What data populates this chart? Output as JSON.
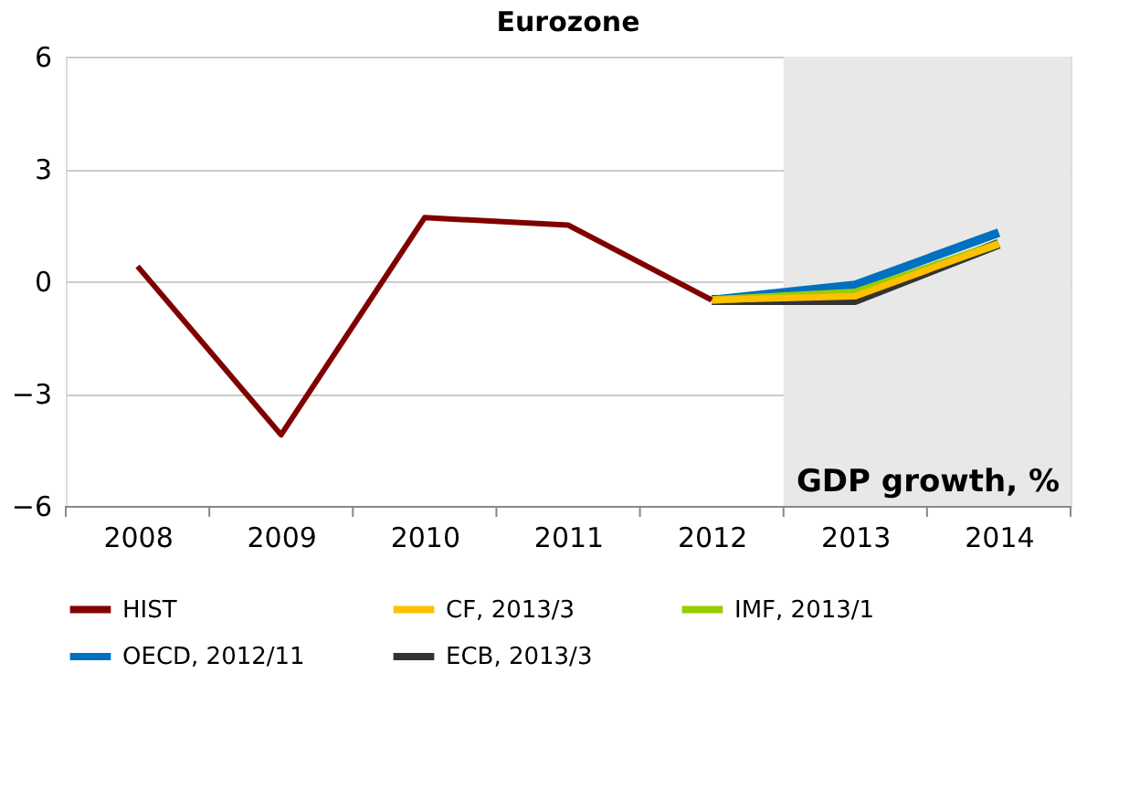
{
  "chart_data": {
    "type": "line",
    "title": "Eurozone",
    "categories": [
      "2008",
      "2009",
      "2010",
      "2011",
      "2012",
      "2013",
      "2014"
    ],
    "series": [
      {
        "name": "HIST",
        "color": "#800000",
        "values": [
          0.4,
          -4.1,
          1.7,
          1.5,
          -0.5,
          null,
          null
        ]
      },
      {
        "name": "CF, 2013/3",
        "color": "#ffc000",
        "values": [
          null,
          null,
          null,
          null,
          -0.5,
          -0.4,
          1.0
        ]
      },
      {
        "name": "IMF, 2013/1",
        "color": "#99cc00",
        "values": [
          null,
          null,
          null,
          null,
          -0.5,
          -0.3,
          1.0
        ]
      },
      {
        "name": "OECD, 2012/11",
        "color": "#0070c0",
        "values": [
          null,
          null,
          null,
          null,
          -0.5,
          -0.1,
          1.3
        ]
      },
      {
        "name": "ECB, 2013/3",
        "color": "#333333",
        "values": [
          null,
          null,
          null,
          null,
          -0.5,
          -0.5,
          1.0
        ]
      }
    ],
    "ylim": [
      -6,
      6
    ],
    "yticks": [
      -6,
      -3,
      0,
      3,
      6
    ],
    "grid": "y",
    "legend": "bottom",
    "marker": "none",
    "line_style": "solid",
    "bands": [
      {
        "axis": "x",
        "from": "2013",
        "to": "2014",
        "color": "#e8e8e8"
      }
    ],
    "annotations": [
      "GDP growth, %"
    ]
  }
}
